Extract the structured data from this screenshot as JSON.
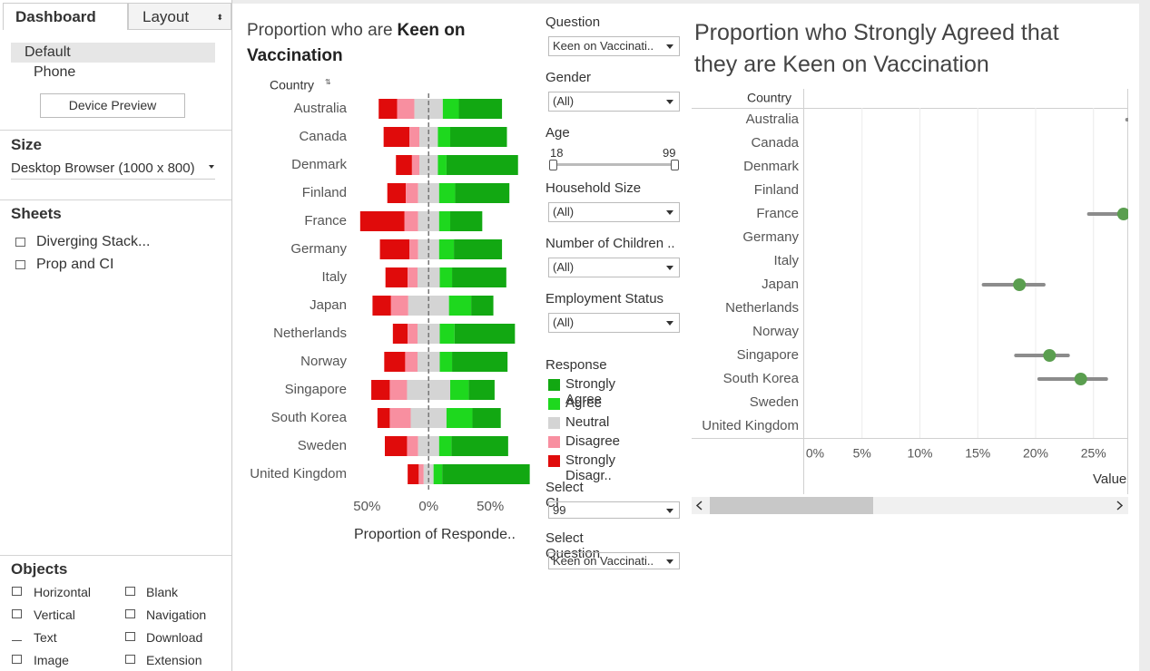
{
  "sidebar": {
    "tabs": [
      "Dashboard",
      "Layout"
    ],
    "devices": [
      "Default",
      "Phone"
    ],
    "device_preview": "Device Preview",
    "size_heading": "Size",
    "size_value": "Desktop Browser (1000 x 800)",
    "sheets_heading": "Sheets",
    "sheets": [
      "Diverging Stack...",
      "Prop and CI"
    ],
    "objects_heading": "Objects",
    "objects": [
      "Horizontal",
      "Blank",
      "Vertical",
      "Navigation",
      "Text",
      "Download",
      "Image",
      "Extension"
    ]
  },
  "filters": [
    {
      "label": "Question",
      "value": "Keen on Vaccinati.."
    },
    {
      "label": "Gender",
      "value": "(All)"
    },
    {
      "label": "Age",
      "min": "18",
      "max": "99"
    },
    {
      "label": "Household Size",
      "value": "(All)"
    },
    {
      "label": "Number of Children ..",
      "value": "(All)"
    },
    {
      "label": "Employment Status",
      "value": "(All)"
    }
  ],
  "lower_filters": [
    {
      "label": "Select CI",
      "value": "99"
    },
    {
      "label": "Select Question",
      "value": "Keen on Vaccinati.."
    }
  ],
  "chart_data": [
    {
      "type": "diverging_bar",
      "title": "Proportion who are",
      "title_emphasis": "Keen on Vaccination",
      "category_header": "Country",
      "x_label": "Proportion of Responde..",
      "legend_title": "Response",
      "categories": [
        "Australia",
        "Canada",
        "Denmark",
        "Finland",
        "France",
        "Germany",
        "Italy",
        "Japan",
        "Netherlands",
        "Norway",
        "Singapore",
        "South Korea",
        "Sweden",
        "United Kingdom"
      ],
      "series": [
        {
          "name": "Strongly Agree",
          "color": "#12a812",
          "values": [
            35,
            46,
            58,
            44,
            26,
            39,
            44,
            18,
            49,
            45,
            21,
            23,
            46,
            71
          ]
        },
        {
          "name": "Agree",
          "color": "#1ed81e",
          "values": [
            13,
            10,
            7,
            13,
            9,
            12,
            10,
            18,
            12,
            10,
            15,
            21,
            10,
            7
          ]
        },
        {
          "name": "Neutral",
          "color": "#d4d4d4",
          "values": [
            23,
            15,
            15,
            17,
            17,
            17,
            18,
            33,
            18,
            18,
            35,
            29,
            17,
            8
          ]
        },
        {
          "name": "Disagree",
          "color": "#f88fa0",
          "values": [
            14,
            8,
            6,
            10,
            11,
            7,
            8,
            14,
            8,
            10,
            14,
            17,
            9,
            4
          ]
        },
        {
          "name": "Strongly Disagr..",
          "color": "#e00b0b",
          "values": [
            15,
            21,
            13,
            15,
            36,
            24,
            18,
            15,
            12,
            17,
            15,
            10,
            18,
            9
          ]
        }
      ],
      "xlim": [
        -62,
        83
      ],
      "xticks": [
        {
          "value": -50,
          "label": "50%"
        },
        {
          "value": 0,
          "label": "0%"
        },
        {
          "value": 50,
          "label": "50%"
        }
      ]
    },
    {
      "type": "dot_ci",
      "title": "Proportion who Strongly Agreed that they are Keen on Vaccination",
      "category_header": "Country",
      "x_label": "Value",
      "categories": [
        "Australia",
        "Canada",
        "Denmark",
        "Finland",
        "France",
        "Germany",
        "Italy",
        "Japan",
        "Netherlands",
        "Norway",
        "Singapore",
        "South Korea",
        "Sweden",
        "United Kingdom"
      ],
      "values": [
        null,
        null,
        null,
        null,
        27.6,
        null,
        null,
        18.6,
        null,
        null,
        21.2,
        23.9,
        null,
        null
      ],
      "ci_low": [
        27.9,
        null,
        null,
        null,
        24.6,
        null,
        null,
        15.5,
        null,
        null,
        18.3,
        20.3,
        null,
        null
      ],
      "ci_high": [
        null,
        null,
        null,
        null,
        null,
        null,
        null,
        20.7,
        null,
        null,
        22.8,
        26.1,
        null,
        null
      ],
      "color": "#5a9e4f",
      "ci_color": "#8c8c8c",
      "grid": true,
      "xlim": [
        0,
        28
      ],
      "xticks": [
        {
          "value": 0,
          "label": "0%"
        },
        {
          "value": 5,
          "label": "5%"
        },
        {
          "value": 10,
          "label": "10%"
        },
        {
          "value": 15,
          "label": "15%"
        },
        {
          "value": 20,
          "label": "20%"
        },
        {
          "value": 25,
          "label": "25%"
        }
      ]
    }
  ]
}
